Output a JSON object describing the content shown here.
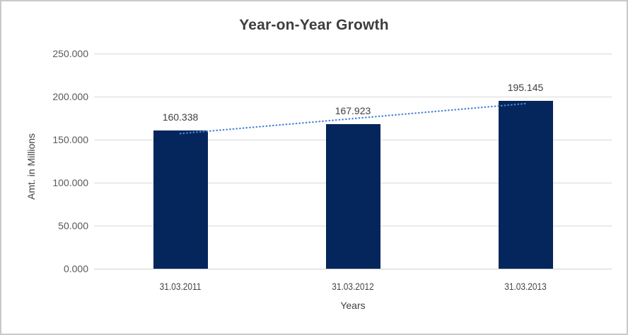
{
  "window": {
    "background": "#ffffff",
    "border_color": "#c9c9c9"
  },
  "chart_data": {
    "type": "bar",
    "title": "Year-on-Year Growth",
    "xlabel": "Years",
    "ylabel": "Amt. in Millions",
    "categories": [
      "31.03.2011",
      "31.03.2012",
      "31.03.2013"
    ],
    "values": [
      160.338,
      167.923,
      195.145
    ],
    "value_labels": [
      "160.338",
      "167.923",
      "195.145"
    ],
    "ylim": [
      0,
      250
    ],
    "yticks": [
      {
        "value": 250,
        "label": "250.000"
      },
      {
        "value": 200,
        "label": "200.000"
      },
      {
        "value": 150,
        "label": "150.000"
      },
      {
        "value": 100,
        "label": "100.000"
      },
      {
        "value": 50,
        "label": "50.000"
      },
      {
        "value": 0,
        "label": "0.000"
      }
    ],
    "grid": "horizontal",
    "legend": "none",
    "bar_color": "#04265c",
    "gridline_color": "#d9d9d9",
    "axis_line_color": "#cfcfcf",
    "title_color": "#3d3d3d",
    "tick_color": "#595959",
    "data_label_color": "#404040",
    "trendline": {
      "type": "linear",
      "style": "dotted",
      "color": "#4a86d8"
    }
  }
}
